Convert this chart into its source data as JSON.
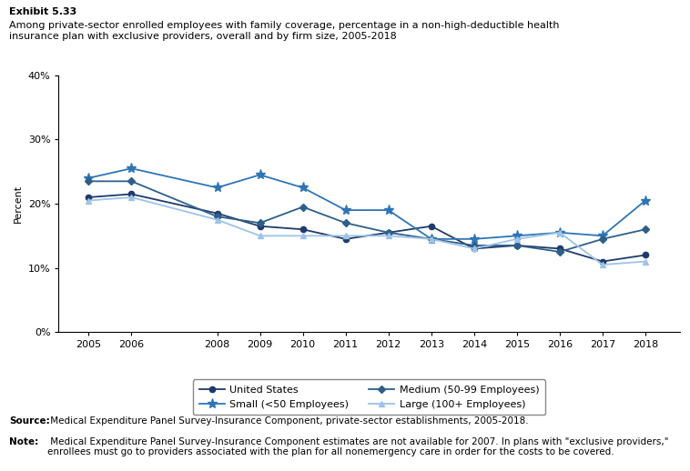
{
  "exhibit_title": "Exhibit 5.33",
  "subtitle": "Among private-sector enrolled employees with family coverage, percentage in a non-high-deductible health\ninsurance plan with exclusive providers, overall and by firm size, 2005-2018",
  "years": [
    2005,
    2006,
    2008,
    2009,
    2010,
    2011,
    2012,
    2013,
    2014,
    2015,
    2016,
    2017,
    2018
  ],
  "united_states": [
    21.0,
    21.5,
    18.5,
    16.5,
    16.0,
    14.5,
    15.5,
    16.5,
    13.0,
    13.5,
    13.0,
    11.0,
    12.0
  ],
  "small": [
    24.0,
    25.5,
    22.5,
    24.5,
    22.5,
    19.0,
    19.0,
    14.5,
    14.5,
    15.0,
    15.5,
    15.0,
    20.5
  ],
  "medium": [
    23.5,
    23.5,
    18.0,
    17.0,
    19.5,
    17.0,
    15.5,
    14.5,
    13.5,
    13.5,
    12.5,
    14.5,
    16.0
  ],
  "large": [
    20.5,
    21.0,
    17.5,
    15.0,
    15.0,
    15.0,
    15.0,
    14.5,
    13.0,
    14.5,
    15.5,
    10.5,
    11.0
  ],
  "ylabel": "Percent",
  "ylim": [
    0,
    40
  ],
  "yticks": [
    0,
    10,
    20,
    30,
    40
  ],
  "ytick_labels": [
    "0%",
    "10%",
    "20%",
    "30%",
    "40%"
  ],
  "color_us": "#1F3B6B",
  "color_small": "#2E75B6",
  "color_medium": "#2E5F8A",
  "color_large": "#9DC3E6",
  "source_bold": "Source:",
  "source_rest": " Medical Expenditure Panel Survey-Insurance Component, private-sector establishments, 2005-2018.",
  "note_bold": "Note:",
  "note_rest": " Medical Expenditure Panel Survey-Insurance Component estimates are not available for 2007. In plans with \"exclusive providers,\" enrollees must go to providers associated with the plan for all nonemergency care in order for the costs to be covered."
}
